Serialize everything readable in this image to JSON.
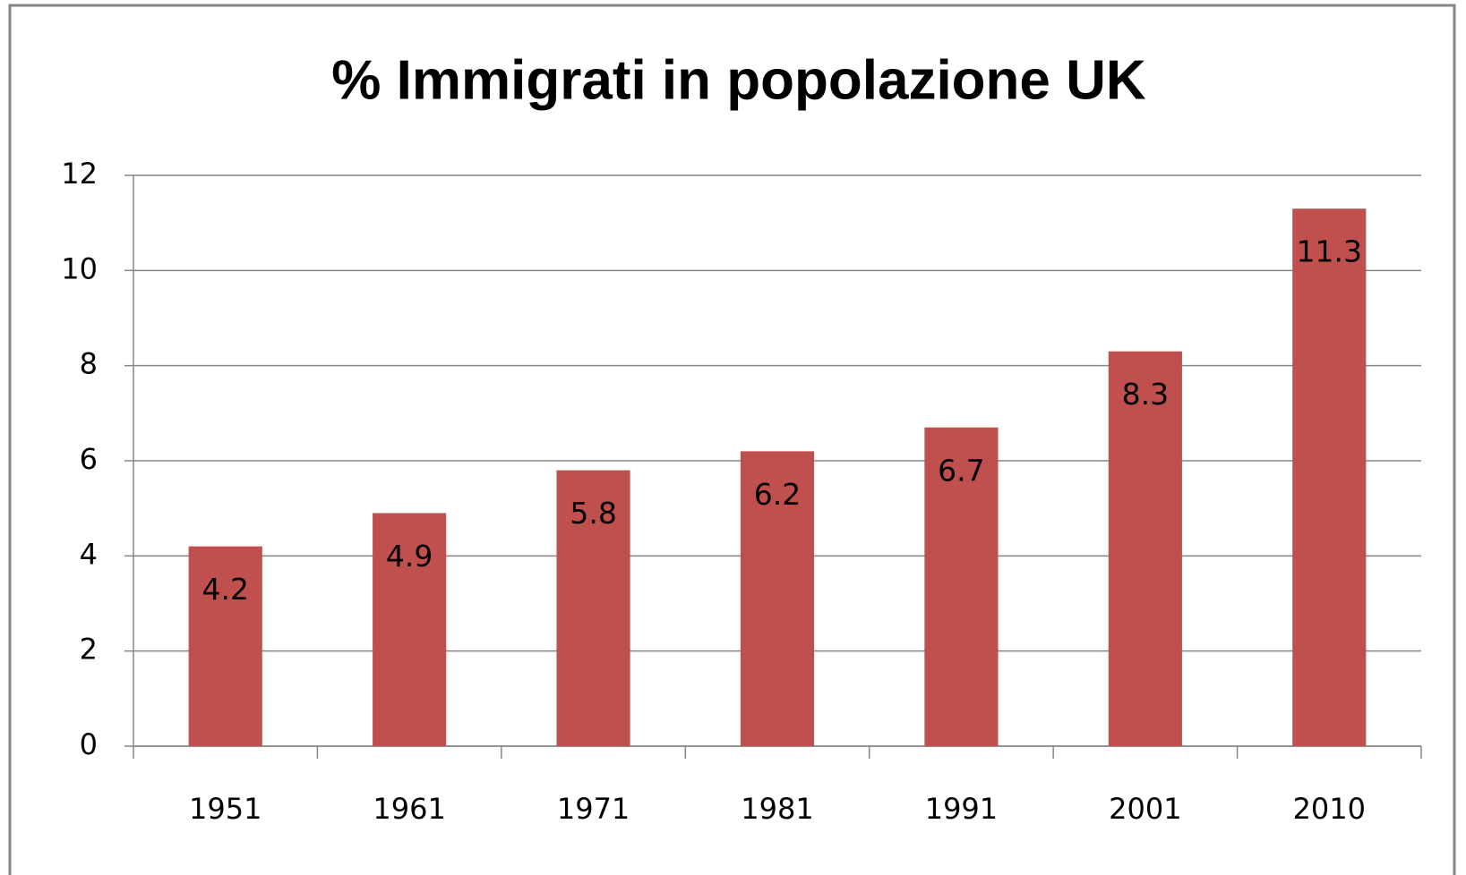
{
  "chart_data": {
    "type": "bar",
    "title": "% Immigrati in popolazione UK",
    "categories": [
      "1951",
      "1961",
      "1971",
      "1981",
      "1991",
      "2001",
      "2010"
    ],
    "values": [
      4.2,
      4.9,
      5.8,
      6.2,
      6.7,
      8.3,
      11.3
    ],
    "color": "#c0504d",
    "ylim": [
      0,
      12
    ],
    "yticks": [
      0,
      2,
      4,
      6,
      8,
      10,
      12
    ],
    "grid": true
  }
}
